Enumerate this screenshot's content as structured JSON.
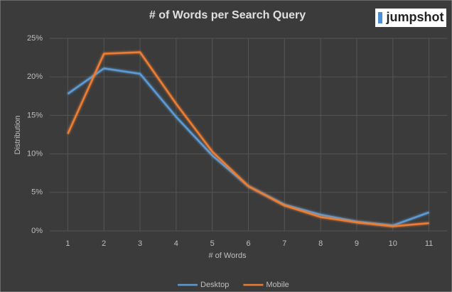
{
  "chart_data": {
    "type": "line",
    "title": "# of Words per Search Query",
    "logo": "jumpshot",
    "xlabel": "# of Words",
    "ylabel": "Distribution",
    "categories": [
      "1",
      "2",
      "3",
      "4",
      "5",
      "6",
      "7",
      "8",
      "9",
      "10",
      "11"
    ],
    "series": [
      {
        "name": "Desktop",
        "color": "#5b9bd5",
        "values": [
          17.8,
          21.1,
          20.4,
          14.8,
          9.8,
          5.8,
          3.4,
          2.1,
          1.2,
          0.7,
          2.4
        ]
      },
      {
        "name": "Mobile",
        "color": "#ed7d31",
        "values": [
          12.6,
          23.0,
          23.2,
          16.5,
          10.3,
          5.8,
          3.3,
          1.8,
          1.1,
          0.6,
          1.0
        ]
      }
    ],
    "ylim": [
      0,
      25
    ],
    "yticks": [
      {
        "value": 0,
        "label": "0%"
      },
      {
        "value": 5,
        "label": "5%"
      },
      {
        "value": 10,
        "label": "10%"
      },
      {
        "value": 15,
        "label": "15%"
      },
      {
        "value": 20,
        "label": "20%"
      },
      {
        "value": 25,
        "label": "25%"
      }
    ],
    "grid": true,
    "legend": "bottom"
  }
}
